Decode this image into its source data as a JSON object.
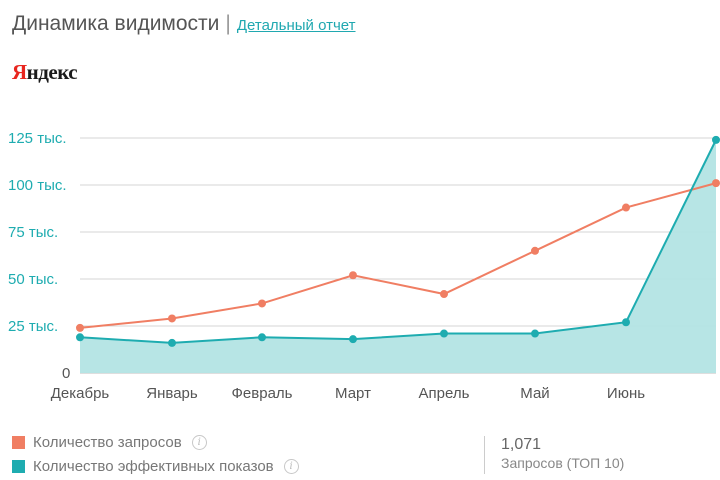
{
  "header": {
    "title": "Динамика видимости",
    "separator": "|",
    "report_link": "Детальный отчет"
  },
  "brand": {
    "first_letter": "Я",
    "rest": "ндекс"
  },
  "colors": {
    "queries": "#f07e63",
    "impressions": "#1eacb0",
    "impressions_fill": "#b3e4e4",
    "grid": "#d4d4d4",
    "tick_label": "#1eacb0"
  },
  "chart_data": {
    "type": "line",
    "categories": [
      "Декабрь",
      "Январь",
      "Февраль",
      "Март",
      "Апрель",
      "Май",
      "Июнь",
      ""
    ],
    "series": [
      {
        "name": "Количество запросов",
        "values": [
          24000,
          29000,
          37000,
          52000,
          42000,
          65000,
          88000,
          101000
        ],
        "color": "#f07e63",
        "filled": false
      },
      {
        "name": "Количество эффективных показов",
        "values": [
          19000,
          16000,
          19000,
          18000,
          21000,
          21000,
          27000,
          124000
        ],
        "color": "#1eacb0",
        "filled": true
      }
    ],
    "y_ticks": [
      {
        "value": 0,
        "label": "0"
      },
      {
        "value": 25000,
        "label": "25 тыс."
      },
      {
        "value": 50000,
        "label": "50 тыс."
      },
      {
        "value": 75000,
        "label": "75 тыс."
      },
      {
        "value": 100000,
        "label": "100 тыс."
      },
      {
        "value": 125000,
        "label": "125 тыс."
      }
    ],
    "ylim": [
      0,
      125000
    ],
    "grid": true,
    "legend_position": "bottom-left"
  },
  "legend": [
    {
      "label": "Количество запросов",
      "color": "#f07e63",
      "icon": "info-icon"
    },
    {
      "label": "Количество эффективных показов",
      "color": "#1eacb0",
      "icon": "info-icon"
    }
  ],
  "summary": {
    "value": "1,071",
    "label": "Запросов (ТОП 10)"
  }
}
